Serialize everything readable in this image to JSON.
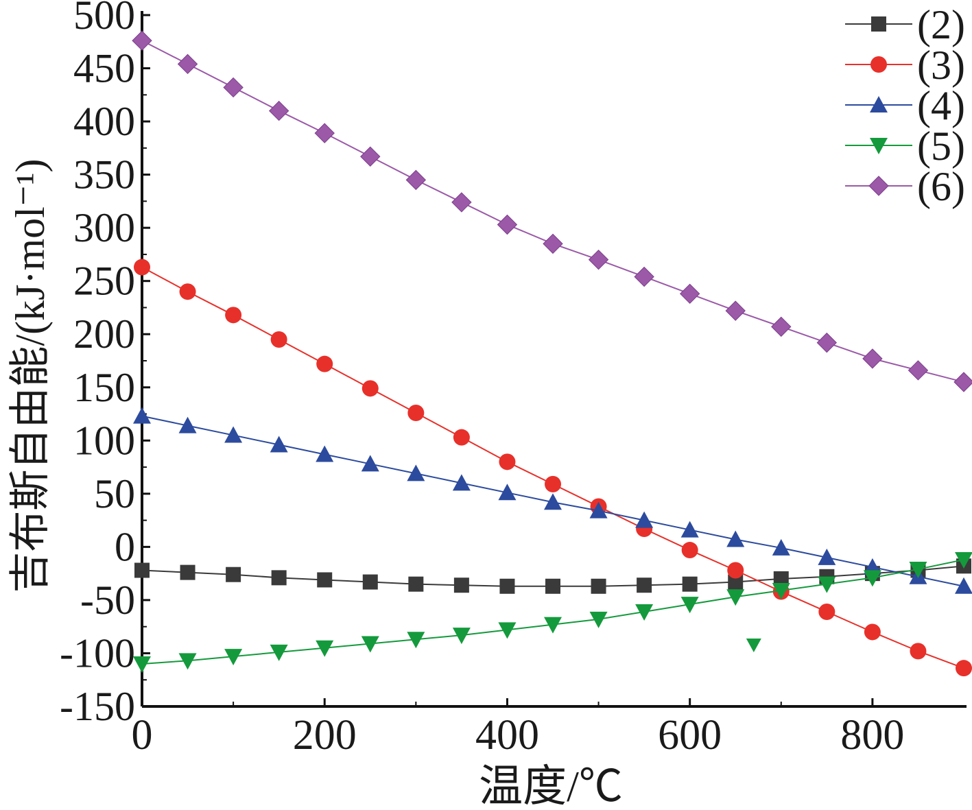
{
  "chart_data": {
    "type": "line",
    "xlabel": "温度/℃",
    "ylabel": "吉布斯自由能/(kJ·mol⁻¹)",
    "xlim": [
      0,
      900
    ],
    "ylim": [
      -150,
      500
    ],
    "xticks": [
      0,
      200,
      400,
      600,
      800
    ],
    "xtick_labels": [
      "0",
      "200",
      "400",
      "600",
      "800"
    ],
    "yticks": [
      -150,
      -100,
      -50,
      0,
      50,
      100,
      150,
      200,
      250,
      300,
      350,
      400,
      450,
      500
    ],
    "ytick_labels": [
      "-150",
      "-100",
      "-50",
      "0",
      "50",
      "100",
      "150",
      "200",
      "250",
      "300",
      "350",
      "400",
      "450",
      "500"
    ],
    "grid": false,
    "legend_position": "top-right",
    "x": [
      0,
      50,
      100,
      150,
      200,
      250,
      300,
      350,
      400,
      450,
      500,
      550,
      600,
      650,
      700,
      750,
      800,
      850,
      900
    ],
    "series": [
      {
        "name": "(2)",
        "marker": "square",
        "color": "#3a3a3a",
        "values": [
          -22,
          -24,
          -26,
          -29,
          -31,
          -33,
          -35,
          -36,
          -37,
          -37,
          -37,
          -36,
          -35,
          -33,
          -30,
          -28,
          -25,
          -22,
          -18
        ]
      },
      {
        "name": "(3)",
        "marker": "circle",
        "color": "#e8302a",
        "values": [
          263,
          240,
          218,
          195,
          172,
          149,
          126,
          103,
          80,
          59,
          38,
          17,
          -3,
          -22,
          -42,
          -61,
          -80,
          -98,
          -114
        ]
      },
      {
        "name": "(4)",
        "marker": "triangle-up",
        "color": "#2c4b9e",
        "values": [
          123,
          114,
          105,
          96,
          87,
          78,
          69,
          60,
          51,
          42,
          34,
          25,
          16,
          7,
          -1,
          -10,
          -19,
          -28,
          -37
        ]
      },
      {
        "name": "(5)",
        "marker": "triangle-down",
        "color": "#149a3c",
        "values": [
          -110,
          -107,
          -103,
          -99,
          -95,
          -91,
          -87,
          -83,
          -78,
          -73,
          -68,
          -61,
          -54,
          -47,
          -41,
          -35,
          -29,
          -21,
          -12
        ]
      },
      {
        "name": "(6)",
        "marker": "diamond",
        "color": "#9b59a8",
        "values": [
          476,
          454,
          432,
          410,
          389,
          367,
          345,
          324,
          303,
          285,
          270,
          254,
          238,
          222,
          207,
          192,
          177,
          166,
          155
        ]
      }
    ],
    "stray_markers": [
      {
        "series_index": 3,
        "x": 670,
        "y": -92
      }
    ]
  }
}
